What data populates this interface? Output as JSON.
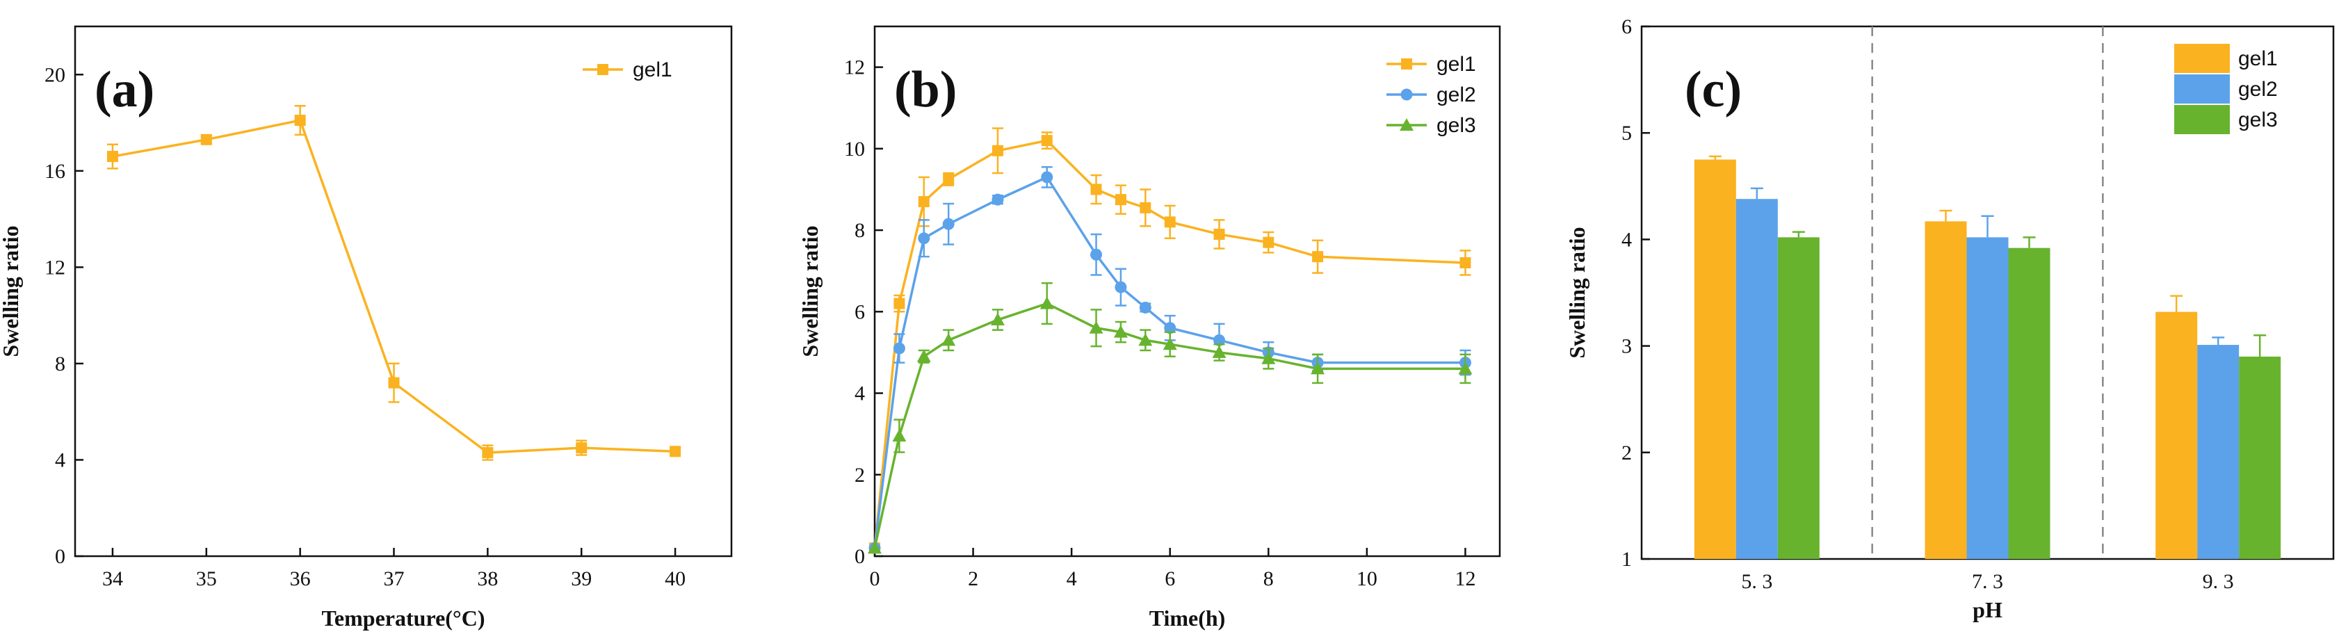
{
  "colors": {
    "gel1": "#fbb220",
    "gel2": "#5ba2ea",
    "gel3": "#67b32e",
    "axis": "#111111",
    "divider": "#888888"
  },
  "chart_data": [
    {
      "type": "line",
      "panel_label": "(a)",
      "xlabel": "Temperature(°C)",
      "ylabel": "Swelling ratio",
      "xlim": [
        33.6,
        40.6
      ],
      "ylim": [
        0,
        22
      ],
      "xticks": [
        34,
        35,
        36,
        37,
        38,
        39,
        40
      ],
      "yticks": [
        0,
        4,
        8,
        12,
        16,
        20
      ],
      "legend_position": "top-right",
      "series": [
        {
          "name": "gel1",
          "color_key": "gel1",
          "marker": "square",
          "x": [
            34,
            35,
            36,
            37,
            38,
            39,
            40
          ],
          "y": [
            16.6,
            17.3,
            18.1,
            7.2,
            4.3,
            4.5,
            4.35
          ],
          "err": [
            0.5,
            0.15,
            0.6,
            0.8,
            0.3,
            0.3,
            0.15
          ]
        }
      ]
    },
    {
      "type": "line",
      "panel_label": "(b)",
      "xlabel": "Time(h)",
      "ylabel": "Swelling ratio",
      "xlim": [
        0,
        12.7
      ],
      "ylim": [
        0,
        13
      ],
      "xticks": [
        0,
        2,
        4,
        6,
        8,
        10,
        12
      ],
      "yticks": [
        0,
        2,
        4,
        6,
        8,
        10,
        12
      ],
      "legend_position": "top-right",
      "series": [
        {
          "name": "gel1",
          "color_key": "gel1",
          "marker": "square",
          "x": [
            0,
            0.5,
            1,
            1.5,
            2.5,
            3.5,
            4.5,
            5,
            5.5,
            6,
            7,
            8,
            9,
            12
          ],
          "y": [
            0.2,
            6.2,
            8.7,
            9.25,
            9.95,
            10.2,
            9.0,
            8.75,
            8.55,
            8.2,
            7.9,
            7.7,
            7.35,
            7.2
          ],
          "err": [
            0,
            0.2,
            0.6,
            0.15,
            0.55,
            0.2,
            0.35,
            0.35,
            0.45,
            0.4,
            0.35,
            0.25,
            0.4,
            0.3
          ]
        },
        {
          "name": "gel2",
          "color_key": "gel2",
          "marker": "circle",
          "x": [
            0,
            0.5,
            1,
            1.5,
            2.5,
            3.5,
            4.5,
            5,
            5.5,
            6,
            7,
            8,
            9,
            12
          ],
          "y": [
            0.2,
            5.1,
            7.8,
            8.15,
            8.75,
            9.3,
            7.4,
            6.6,
            6.1,
            5.6,
            5.3,
            5.0,
            4.75,
            4.75
          ],
          "err": [
            0,
            0.35,
            0.45,
            0.5,
            0.1,
            0.25,
            0.5,
            0.45,
            0.1,
            0.3,
            0.4,
            0.25,
            0.2,
            0.3
          ]
        },
        {
          "name": "gel3",
          "color_key": "gel3",
          "marker": "triangle",
          "x": [
            0,
            0.5,
            1,
            1.5,
            2.5,
            3.5,
            4.5,
            5,
            5.5,
            6,
            7,
            8,
            9,
            12
          ],
          "y": [
            0.2,
            2.95,
            4.9,
            5.3,
            5.8,
            6.2,
            5.6,
            5.5,
            5.3,
            5.2,
            5.0,
            4.85,
            4.6,
            4.6
          ],
          "err": [
            0,
            0.4,
            0.15,
            0.25,
            0.25,
            0.5,
            0.45,
            0.25,
            0.25,
            0.3,
            0.2,
            0.25,
            0.35,
            0.35
          ]
        }
      ]
    },
    {
      "type": "bar",
      "panel_label": "(c)",
      "xlabel": "pH",
      "ylabel": "Swelling ratio",
      "ylim": [
        1,
        6
      ],
      "yticks": [
        1,
        2,
        3,
        4,
        5,
        6
      ],
      "categories": [
        "5. 3",
        "7. 3",
        "9. 3"
      ],
      "legend_position": "top-right",
      "series": [
        {
          "name": "gel1",
          "color_key": "gel1",
          "values": [
            4.75,
            4.17,
            3.32
          ],
          "err": [
            0.03,
            0.1,
            0.15
          ]
        },
        {
          "name": "gel2",
          "color_key": "gel2",
          "values": [
            4.38,
            4.02,
            3.01
          ],
          "err": [
            0.1,
            0.2,
            0.07
          ]
        },
        {
          "name": "gel3",
          "color_key": "gel3",
          "values": [
            4.02,
            3.92,
            2.9
          ],
          "err": [
            0.05,
            0.1,
            0.2
          ]
        }
      ]
    }
  ]
}
